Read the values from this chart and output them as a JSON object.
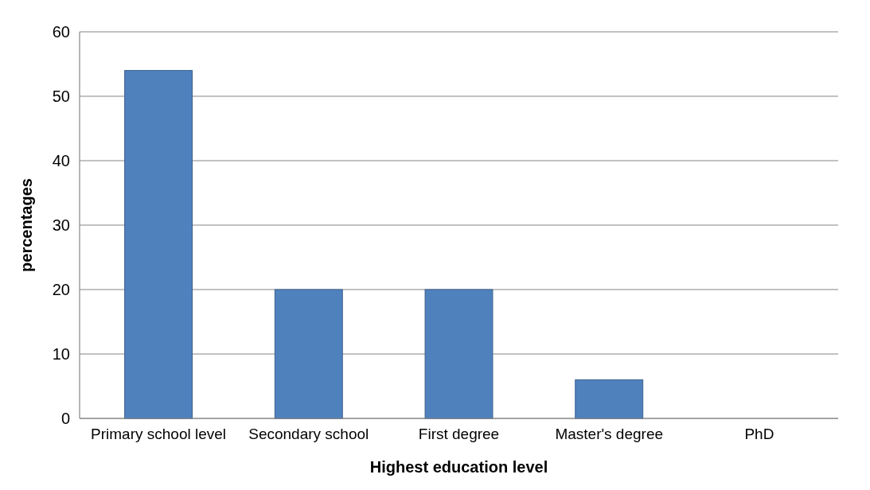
{
  "chart_data": {
    "type": "bar",
    "xlabel": "Highest education level",
    "ylabel": "percentages",
    "categories": [
      "Primary school level",
      "Secondary school",
      "First degree",
      "Master's degree",
      "PhD"
    ],
    "values": [
      54,
      20,
      20,
      6,
      0
    ],
    "color": "#4f81bd",
    "ylim": [
      0,
      60
    ],
    "yticks": [
      0,
      10,
      20,
      30,
      40,
      50,
      60
    ],
    "grid": "y"
  }
}
